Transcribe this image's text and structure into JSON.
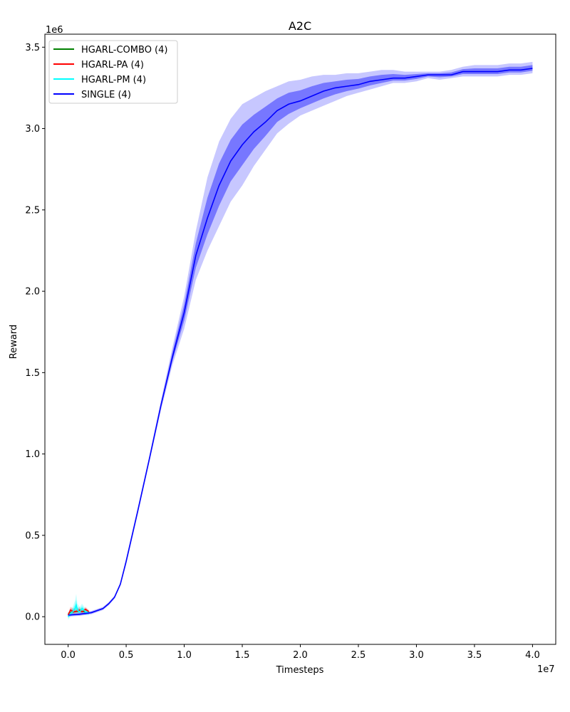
{
  "chart_data": {
    "type": "line",
    "title": "A2C",
    "xlabel": "Timesteps",
    "ylabel": "Reward",
    "x_offset_label": "1e7",
    "y_offset_label": "1e6",
    "xlim": [
      -0.2,
      4.2
    ],
    "ylim": [
      -0.17,
      3.58
    ],
    "x_ticks": [
      0.0,
      0.5,
      1.0,
      1.5,
      2.0,
      2.5,
      3.0,
      3.5,
      4.0
    ],
    "x_tick_labels": [
      "0.0",
      "0.5",
      "1.0",
      "1.5",
      "2.0",
      "2.5",
      "3.0",
      "3.5",
      "4.0"
    ],
    "y_ticks": [
      0.0,
      0.5,
      1.0,
      1.5,
      2.0,
      2.5,
      3.0,
      3.5
    ],
    "y_tick_labels": [
      "0.0",
      "0.5",
      "1.0",
      "1.5",
      "2.0",
      "2.5",
      "3.0",
      "3.5"
    ],
    "grid": false,
    "legend_position": "top-left",
    "series": [
      {
        "name": "HGARL-COMBO (4)",
        "color": "#008000",
        "x": [
          0.0,
          0.05,
          0.1,
          0.15
        ],
        "y": [
          0.02,
          0.03,
          0.035,
          0.03
        ]
      },
      {
        "name": "HGARL-PA (4)",
        "color": "#ff0000",
        "x": [
          0.0,
          0.02,
          0.05,
          0.08,
          0.1,
          0.12,
          0.15,
          0.18
        ],
        "y": [
          0.01,
          0.04,
          0.03,
          0.035,
          0.04,
          0.03,
          0.045,
          0.03
        ],
        "band_upper": [
          0.02,
          0.06,
          0.05,
          0.05,
          0.06,
          0.04,
          0.06,
          0.04
        ],
        "band_lower": [
          0.0,
          0.02,
          0.015,
          0.02,
          0.02,
          0.02,
          0.03,
          0.02
        ]
      },
      {
        "name": "HGARL-PM (4)",
        "color": "#00ffff",
        "x": [
          0.0,
          0.02,
          0.04,
          0.06,
          0.07,
          0.08,
          0.1,
          0.12,
          0.15,
          0.18
        ],
        "y": [
          0.0,
          0.02,
          0.03,
          0.05,
          0.07,
          0.04,
          0.03,
          0.05,
          0.03,
          0.025
        ],
        "band_upper": [
          0.02,
          0.04,
          0.06,
          0.1,
          0.14,
          0.08,
          0.06,
          0.08,
          0.05,
          0.04
        ],
        "band_lower": [
          -0.02,
          0.0,
          0.01,
          0.02,
          0.02,
          0.01,
          0.01,
          0.02,
          0.01,
          0.01
        ]
      },
      {
        "name": "SINGLE (4)",
        "color": "#0000ff",
        "x": [
          0.0,
          0.1,
          0.2,
          0.3,
          0.35,
          0.4,
          0.45,
          0.5,
          0.6,
          0.7,
          0.8,
          0.9,
          1.0,
          1.1,
          1.2,
          1.3,
          1.4,
          1.5,
          1.6,
          1.7,
          1.8,
          1.9,
          2.0,
          2.1,
          2.2,
          2.3,
          2.4,
          2.5,
          2.6,
          2.7,
          2.8,
          2.9,
          3.0,
          3.1,
          3.2,
          3.3,
          3.4,
          3.5,
          3.6,
          3.7,
          3.8,
          3.9,
          4.0
        ],
        "y": [
          0.01,
          0.015,
          0.025,
          0.05,
          0.08,
          0.12,
          0.2,
          0.34,
          0.65,
          0.97,
          1.3,
          1.6,
          1.87,
          2.22,
          2.45,
          2.65,
          2.8,
          2.9,
          2.98,
          3.04,
          3.11,
          3.15,
          3.17,
          3.2,
          3.23,
          3.25,
          3.26,
          3.27,
          3.29,
          3.3,
          3.31,
          3.31,
          3.32,
          3.33,
          3.33,
          3.33,
          3.35,
          3.35,
          3.35,
          3.35,
          3.36,
          3.36,
          3.37
        ],
        "band_upper": [
          0.02,
          0.025,
          0.035,
          0.06,
          0.09,
          0.13,
          0.21,
          0.36,
          0.67,
          0.99,
          1.33,
          1.66,
          1.97,
          2.37,
          2.7,
          2.92,
          3.06,
          3.15,
          3.19,
          3.23,
          3.26,
          3.29,
          3.3,
          3.32,
          3.33,
          3.33,
          3.34,
          3.34,
          3.35,
          3.36,
          3.36,
          3.35,
          3.35,
          3.35,
          3.35,
          3.36,
          3.38,
          3.39,
          3.39,
          3.39,
          3.4,
          3.4,
          3.41
        ],
        "band_lower": [
          0.0,
          0.005,
          0.015,
          0.04,
          0.07,
          0.11,
          0.19,
          0.32,
          0.63,
          0.95,
          1.27,
          1.55,
          1.77,
          2.07,
          2.25,
          2.4,
          2.55,
          2.65,
          2.77,
          2.87,
          2.97,
          3.03,
          3.08,
          3.11,
          3.14,
          3.17,
          3.2,
          3.22,
          3.24,
          3.26,
          3.28,
          3.28,
          3.29,
          3.31,
          3.3,
          3.31,
          3.32,
          3.32,
          3.32,
          3.32,
          3.33,
          3.33,
          3.34
        ]
      }
    ]
  }
}
